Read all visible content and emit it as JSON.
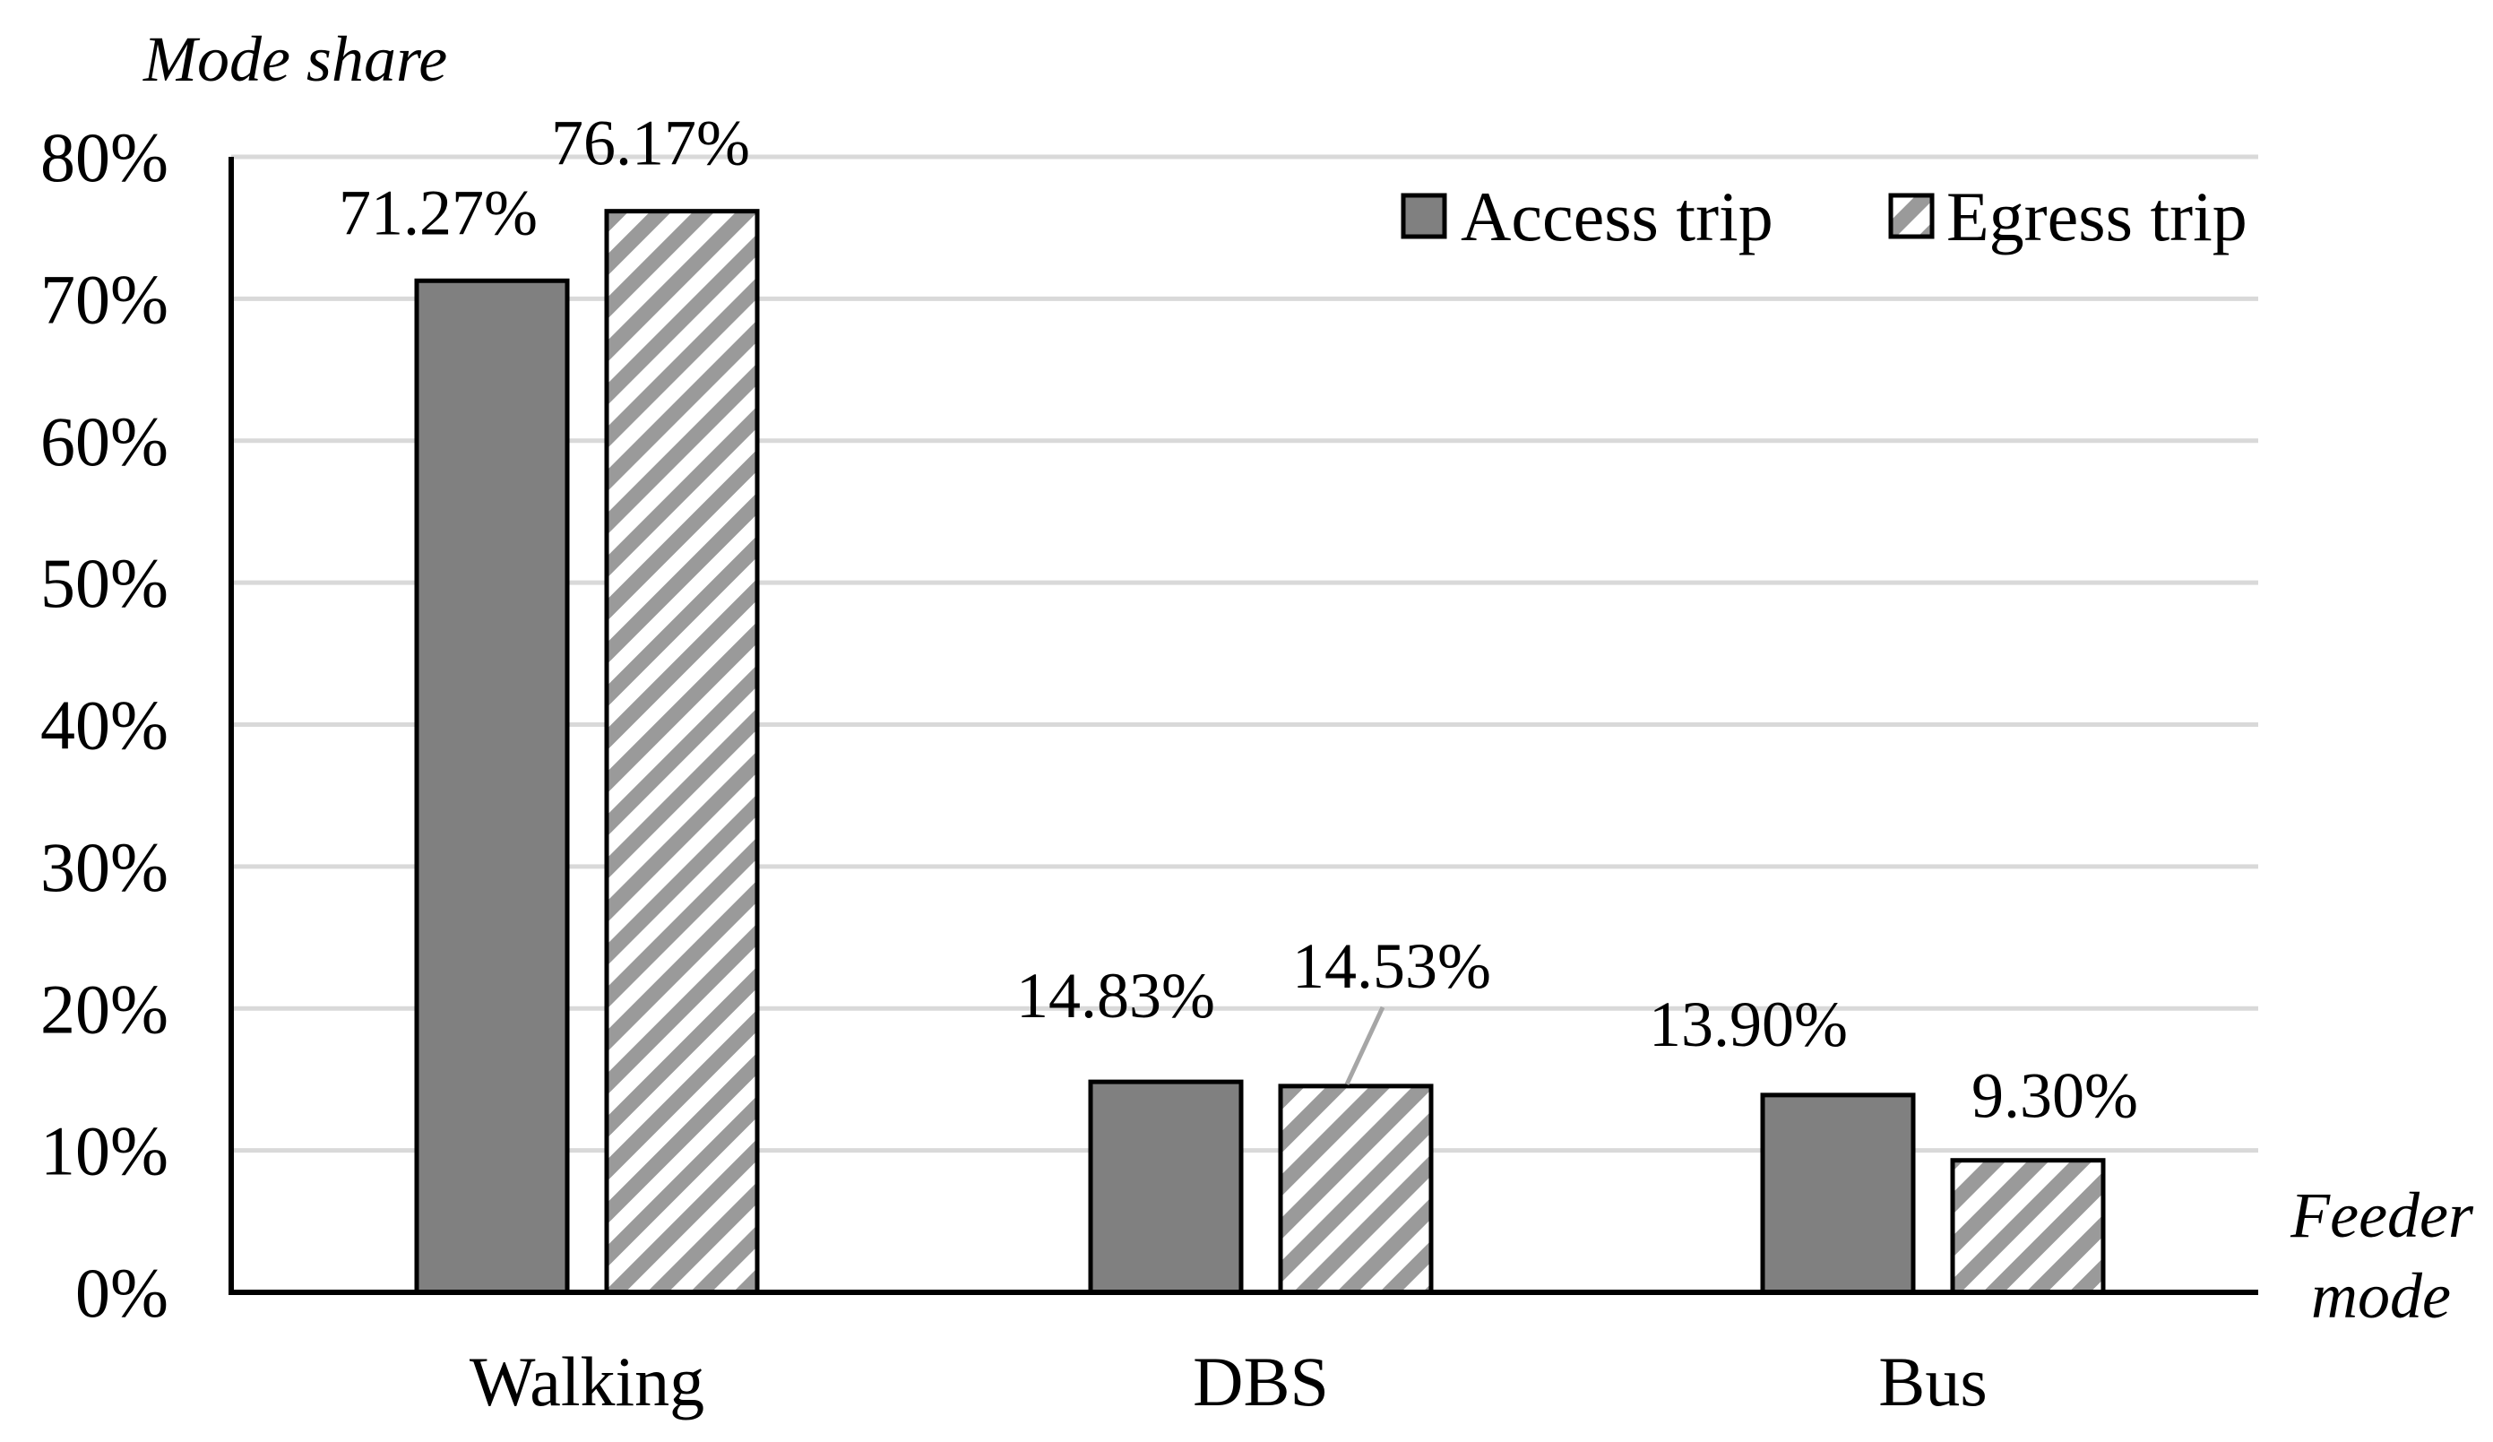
{
  "chart_data": {
    "type": "bar",
    "title": "",
    "ylabel": "Mode share",
    "xlabel": "Feeder mode",
    "ylim": [
      0,
      80
    ],
    "ytick_step": 10,
    "ytick_suffix": "%",
    "grid": true,
    "legend_position": "top-right",
    "categories": [
      "Walking",
      "DBS",
      "Bus"
    ],
    "series": [
      {
        "name": "Access trip",
        "style": "solid",
        "color": "#808080",
        "values": [
          71.27,
          14.83,
          13.9
        ],
        "labels": [
          "71.27%",
          "14.83%",
          "13.90%"
        ]
      },
      {
        "name": "Egress trip",
        "style": "hatched",
        "color": "#999999",
        "values": [
          76.17,
          14.53,
          9.3
        ],
        "labels": [
          "76.17%",
          "14.53%",
          "9.30%"
        ]
      }
    ]
  }
}
